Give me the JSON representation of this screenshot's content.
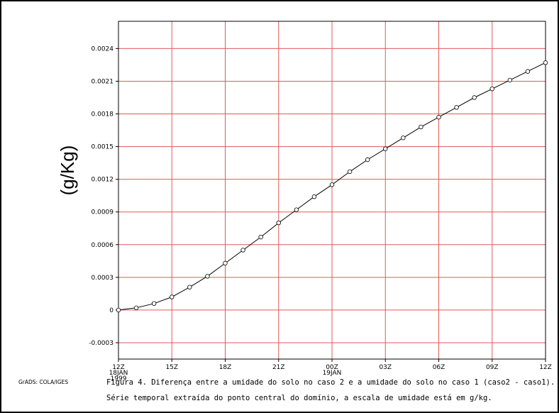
{
  "chart_data": {
    "type": "line",
    "ylabel": "(g/Kg)",
    "ylim": [
      -0.00045,
      0.00265
    ],
    "y_ticks": [
      "-0.0003",
      "0",
      "0.0003",
      "0.0006",
      "0.0009",
      "0.0012",
      "0.0015",
      "0.0018",
      "0.0021",
      "0.0024"
    ],
    "y_tick_values": [
      -0.0003,
      0,
      0.0003,
      0.0006,
      0.0009,
      0.0012,
      0.0015,
      0.0018,
      0.0021,
      0.0024
    ],
    "x_ticks": [
      {
        "label": "12Z",
        "sub1": "18JAN",
        "sub2": "1999"
      },
      {
        "label": "15Z",
        "sub1": "",
        "sub2": ""
      },
      {
        "label": "18Z",
        "sub1": "",
        "sub2": ""
      },
      {
        "label": "21Z",
        "sub1": "",
        "sub2": ""
      },
      {
        "label": "00Z",
        "sub1": "19JAN",
        "sub2": ""
      },
      {
        "label": "03Z",
        "sub1": "",
        "sub2": ""
      },
      {
        "label": "06Z",
        "sub1": "",
        "sub2": ""
      },
      {
        "label": "09Z",
        "sub1": "",
        "sub2": ""
      },
      {
        "label": "12Z",
        "sub1": "",
        "sub2": ""
      }
    ],
    "x_hours": [
      0,
      3,
      6,
      9,
      12,
      15,
      18,
      21,
      24
    ],
    "xlim": [
      0,
      24
    ],
    "grid": true,
    "grid_color": "#e05a5a",
    "line_color": "#000000",
    "series": [
      {
        "x": [
          0,
          1,
          2,
          3,
          4,
          5,
          6,
          7,
          8,
          9,
          10,
          11,
          12,
          13,
          14,
          15,
          16,
          17,
          18,
          19,
          20,
          21,
          22,
          23,
          24
        ],
        "values": [
          0.0,
          2e-05,
          6e-05,
          0.00012,
          0.00021,
          0.00031,
          0.00043,
          0.00055,
          0.00067,
          0.0008,
          0.00092,
          0.00104,
          0.00115,
          0.00127,
          0.00138,
          0.00148,
          0.00158,
          0.00168,
          0.00177,
          0.00186,
          0.00195,
          0.00203,
          0.00211,
          0.00219,
          0.00227
        ]
      }
    ]
  },
  "caption": {
    "line1": "Figura 4. Diferença entre a umidade do solo no caso 2 e a umidade do solo no caso 1 (caso2 - caso1).",
    "line2": "Série temporal extraída do ponto central do domínio, a escala de umidade está em g/kg."
  },
  "credit": "GrADS: COLA/IGES"
}
